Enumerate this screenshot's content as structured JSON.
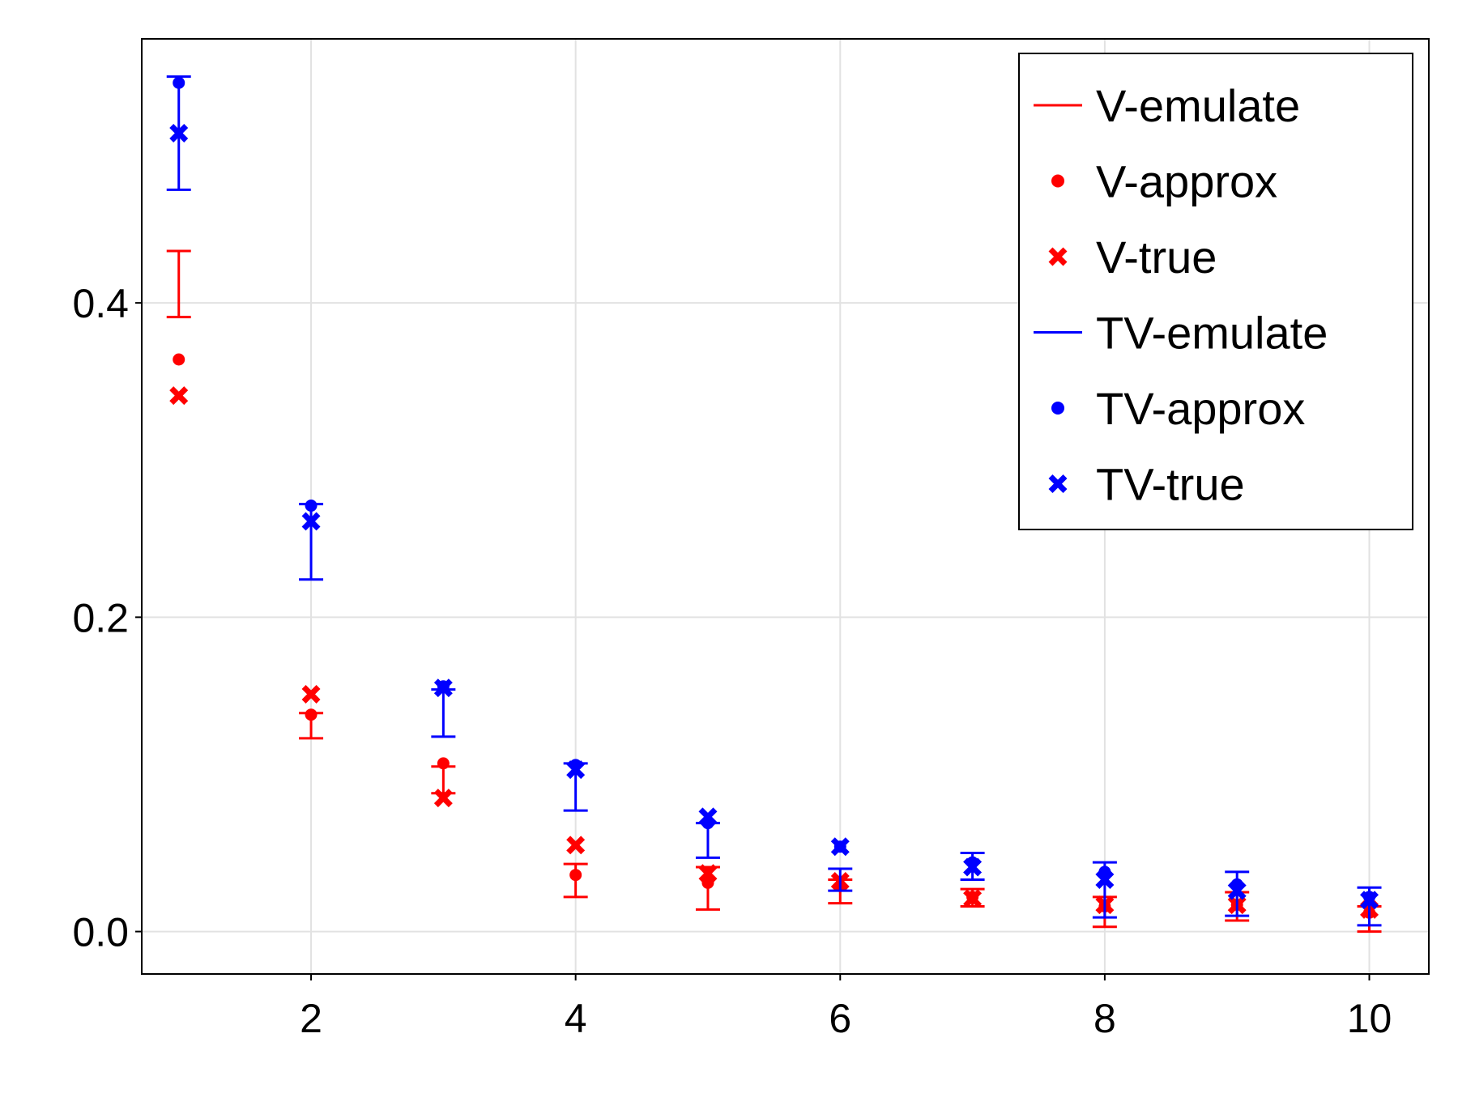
{
  "chart_data": {
    "type": "scatter",
    "title": "",
    "xlabel": "",
    "ylabel": "",
    "xlim": [
      0.72,
      10.45
    ],
    "ylim": [
      -0.027,
      0.568
    ],
    "xticks": [
      2,
      4,
      6,
      8,
      10
    ],
    "yticks": [
      0.0,
      0.2,
      0.4
    ],
    "xtick_labels": [
      "2",
      "4",
      "6",
      "8",
      "10"
    ],
    "ytick_labels": [
      "0.0",
      "0.2",
      "0.4"
    ],
    "grid": true,
    "legend_position": "top-right",
    "series": [
      {
        "name": "V-emulate",
        "kind": "errorbar",
        "color": "#ff0000",
        "x": [
          1,
          2,
          3,
          4,
          5,
          6,
          7,
          8,
          9,
          10
        ],
        "lower": [
          0.391,
          0.123,
          0.088,
          0.022,
          0.014,
          0.018,
          0.016,
          0.003,
          0.007,
          0.0
        ],
        "upper": [
          0.433,
          0.139,
          0.105,
          0.043,
          0.041,
          0.033,
          0.027,
          0.022,
          0.025,
          0.016
        ]
      },
      {
        "name": "V-approx",
        "kind": "dot",
        "color": "#ff0000",
        "x": [
          1,
          2,
          3,
          4,
          5,
          6,
          7,
          8,
          9,
          10
        ],
        "y": [
          0.364,
          0.138,
          0.107,
          0.036,
          0.031,
          0.029,
          0.022,
          0.016,
          0.017,
          0.012
        ]
      },
      {
        "name": "V-true",
        "kind": "cross",
        "color": "#ff0000",
        "x": [
          1,
          2,
          3,
          4,
          5,
          6,
          7,
          8,
          9,
          10
        ],
        "y": [
          0.341,
          0.151,
          0.085,
          0.055,
          0.037,
          0.032,
          0.021,
          0.017,
          0.017,
          0.014
        ]
      },
      {
        "name": "TV-emulate",
        "kind": "errorbar",
        "color": "#0000ff",
        "x": [
          1,
          2,
          3,
          4,
          5,
          6,
          7,
          8,
          9,
          10
        ],
        "lower": [
          0.472,
          0.224,
          0.124,
          0.077,
          0.047,
          0.026,
          0.033,
          0.009,
          0.01,
          0.004
        ],
        "upper": [
          0.544,
          0.272,
          0.154,
          0.107,
          0.069,
          0.04,
          0.05,
          0.044,
          0.038,
          0.028
        ]
      },
      {
        "name": "TV-approx",
        "kind": "dot",
        "color": "#0000ff",
        "x": [
          1,
          2,
          3,
          4,
          5,
          6,
          7,
          8,
          9,
          10
        ],
        "y": [
          0.54,
          0.271,
          0.156,
          0.106,
          0.069,
          0.054,
          0.044,
          0.038,
          0.03,
          0.022
        ]
      },
      {
        "name": "TV-true",
        "kind": "cross",
        "color": "#0000ff",
        "x": [
          1,
          2,
          3,
          4,
          5,
          6,
          7,
          8,
          9,
          10
        ],
        "y": [
          0.508,
          0.261,
          0.155,
          0.103,
          0.073,
          0.054,
          0.041,
          0.033,
          0.026,
          0.02
        ]
      }
    ]
  }
}
